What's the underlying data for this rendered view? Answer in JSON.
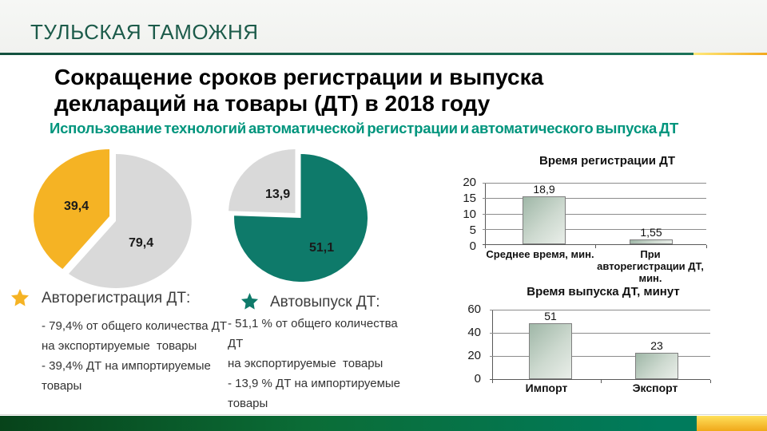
{
  "header": {
    "title": "ТУЛЬСКАЯ ТАМОЖНЯ"
  },
  "slide": {
    "title": "Сокращение сроков регистрации и выпуска\nдеклараций на товары (ДТ) в 2018 году",
    "subtitle": "Использование технологий автоматической регистрации и автоматического выпуска ДТ"
  },
  "colors": {
    "header_green": "#1C5B4A",
    "rule_green": "#17684F",
    "accent_gold": "#F5B324",
    "subtitle_teal": "#00957D",
    "pie_yellow": "#F5B324",
    "pie_gray": "#D9D9D9",
    "pie_teal": "#0E7A6A",
    "bar_gradient_dark": "#9FB7A7",
    "bar_gradient_light": "#E9EEE9",
    "footer_green_left": "#07431A",
    "footer_green_right": "#007B5C"
  },
  "notes": [
    {
      "icon": "star-icon",
      "icon_color": "#F5B324",
      "heading": "Авторегистрация ДТ:",
      "body": "- 79,4% от общего количества ДТ\nна экспортируемые  товары\n- 39,4% ДТ на импортируемые\nтовары"
    },
    {
      "icon": "star-icon",
      "icon_color": "#0E7A6A",
      "heading": "Автовыпуск ДТ:",
      "body": "- 51,1 % от общего количества  ДТ\nна экспортируемые  товары\n- 13,9 % ДТ на импортируемые\nтовары"
    }
  ],
  "chart_data": [
    {
      "type": "pie",
      "title": "Авторегистрация ДТ",
      "slices": [
        {
          "label": "39,4",
          "value": 39.4,
          "color": "#F5B324",
          "exploded": true
        },
        {
          "label": "79,4",
          "value": 79.4,
          "color": "#D9D9D9",
          "exploded": false
        }
      ],
      "legend_position": "none"
    },
    {
      "type": "pie",
      "title": "Автовыпуск ДТ",
      "slices": [
        {
          "label": "13,9",
          "value": 13.9,
          "color": "#D9D9D9",
          "exploded": true
        },
        {
          "label": "51,1",
          "value": 51.1,
          "color": "#0E7A6A",
          "exploded": false
        }
      ],
      "legend_position": "none"
    },
    {
      "type": "bar",
      "title": "Время регистрации ДТ",
      "categories": [
        "Среднее время, мин.",
        "При авторегистрации ДТ, мин."
      ],
      "values": [
        18.9,
        1.55
      ],
      "value_labels": [
        "18,9",
        "1,55"
      ],
      "xlabel": "",
      "ylabel": "",
      "ylim": [
        0,
        20
      ],
      "yticks": [
        20,
        15,
        10,
        5,
        0
      ],
      "grid": true,
      "legend_position": "none"
    },
    {
      "type": "bar",
      "title": "Время выпуска ДТ, минут",
      "categories": [
        "Импорт",
        "Экспорт"
      ],
      "values": [
        51,
        23
      ],
      "value_labels": [
        "51",
        "23"
      ],
      "xlabel": "",
      "ylabel": "",
      "ylim": [
        0,
        60
      ],
      "yticks": [
        60,
        40,
        20,
        0
      ],
      "grid": true,
      "legend_position": "none"
    }
  ]
}
